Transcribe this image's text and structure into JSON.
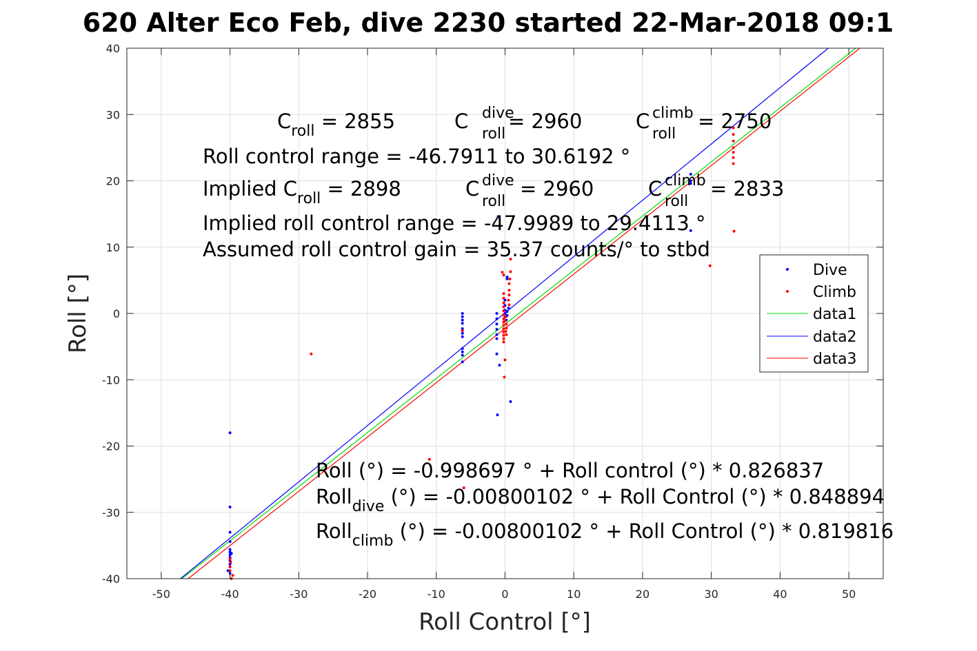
{
  "chart_data": {
    "type": "scatter",
    "title": "620 Alter Eco Feb, dive 2230 started 22-Mar-2018 09:1",
    "xlabel": "Roll Control [°]",
    "ylabel": "Roll [°]",
    "xlim": [
      -55,
      55
    ],
    "ylim": [
      -40,
      40
    ],
    "xticks": [
      -50,
      -40,
      -30,
      -20,
      -10,
      0,
      10,
      20,
      30,
      40,
      50
    ],
    "yticks": [
      -40,
      -30,
      -20,
      -10,
      0,
      10,
      20,
      30,
      40
    ],
    "grid": true,
    "legend_position": "right",
    "legend": [
      "Dive",
      "Climb",
      "data1",
      "data2",
      "data3"
    ],
    "series": [
      {
        "name": "Dive",
        "kind": "points",
        "color": "#0000ff",
        "points": [
          [
            -40,
            -18
          ],
          [
            -40,
            -29.2
          ],
          [
            -40,
            -33
          ],
          [
            -40,
            -34.4
          ],
          [
            -40,
            -35.6
          ],
          [
            -40,
            -36
          ],
          [
            -40,
            -36.4
          ],
          [
            -40,
            -36.8
          ],
          [
            -40,
            -37.3
          ],
          [
            -40,
            -37.8
          ],
          [
            -40,
            -38.2
          ],
          [
            -40.3,
            -38.8
          ],
          [
            -40,
            -39.2
          ],
          [
            -39.8,
            -36.2
          ],
          [
            -6.2,
            0
          ],
          [
            -6.2,
            -0.5
          ],
          [
            -6.2,
            -1
          ],
          [
            -6.2,
            -1.5
          ],
          [
            -6.2,
            -2.3
          ],
          [
            -6.2,
            -3
          ],
          [
            -6.2,
            -3.5
          ],
          [
            -6.2,
            -5.3
          ],
          [
            -6.2,
            -5.8
          ],
          [
            -6.2,
            -6.3
          ],
          [
            -6.2,
            -7.3
          ],
          [
            -1.2,
            0
          ],
          [
            -1.2,
            -0.8
          ],
          [
            -1.2,
            -1.6
          ],
          [
            -1.2,
            -2.4
          ],
          [
            -1.2,
            -3.2
          ],
          [
            -1.2,
            -3.8
          ],
          [
            -1.2,
            -6.1
          ],
          [
            -0.8,
            -7.8
          ],
          [
            -1.1,
            -15.3
          ],
          [
            -1,
            14.6
          ],
          [
            0,
            0
          ],
          [
            0,
            0.5
          ],
          [
            0,
            1.2
          ],
          [
            0,
            2
          ],
          [
            0.1,
            -0.5
          ],
          [
            0.2,
            -1
          ],
          [
            0.3,
            0.3
          ],
          [
            0.5,
            0.8
          ],
          [
            0.3,
            5.5
          ],
          [
            0.3,
            5.2
          ],
          [
            0.8,
            -13.3
          ],
          [
            0.3,
            -0.3
          ],
          [
            27,
            21
          ],
          [
            27,
            20
          ],
          [
            27,
            19.6
          ],
          [
            27,
            12.5
          ]
        ]
      },
      {
        "name": "Climb",
        "kind": "points",
        "color": "#ff0000",
        "points": [
          [
            -40,
            -37
          ],
          [
            -40,
            -38.2
          ],
          [
            -40,
            -38.8
          ],
          [
            -39.6,
            -39.5
          ],
          [
            -39.8,
            -40
          ],
          [
            -39.9,
            -37.5
          ],
          [
            -28.2,
            -6.1
          ],
          [
            -11,
            -22
          ],
          [
            -6,
            -26.3
          ],
          [
            -0.4,
            6.2
          ],
          [
            -0.2,
            5.8
          ],
          [
            0.8,
            6.3
          ],
          [
            0.7,
            5.2
          ],
          [
            0.6,
            4.5
          ],
          [
            0.6,
            3.5
          ],
          [
            0.6,
            2.8
          ],
          [
            0.5,
            2
          ],
          [
            0.6,
            1.3
          ],
          [
            0.8,
            8.2
          ],
          [
            -0.2,
            3
          ],
          [
            -0.2,
            2.3
          ],
          [
            -0.2,
            1.6
          ],
          [
            -0.2,
            1
          ],
          [
            -0.2,
            0.4
          ],
          [
            -0.2,
            -0.2
          ],
          [
            -0.2,
            -0.8
          ],
          [
            -0.2,
            -1.3
          ],
          [
            -0.2,
            -1.8
          ],
          [
            -0.2,
            -2.3
          ],
          [
            -0.2,
            -2.8
          ],
          [
            -0.2,
            -3.3
          ],
          [
            -0.2,
            -3.8
          ],
          [
            -0.2,
            -4.3
          ],
          [
            0,
            -0.5
          ],
          [
            0,
            -1.1
          ],
          [
            0.2,
            -1.6
          ],
          [
            0.2,
            -2.2
          ],
          [
            0.1,
            -2.7
          ],
          [
            0.2,
            -3.2
          ],
          [
            0,
            -7
          ],
          [
            -0.1,
            -9.6
          ],
          [
            -6.2,
            -2.6
          ],
          [
            33.2,
            28
          ],
          [
            33.2,
            27
          ],
          [
            33.2,
            26
          ],
          [
            33.2,
            25
          ],
          [
            33.2,
            24.3
          ],
          [
            33.2,
            23.5
          ],
          [
            33.2,
            22.6
          ],
          [
            33.3,
            12.4
          ],
          [
            29.8,
            7.2
          ]
        ]
      },
      {
        "name": "data1",
        "kind": "line",
        "color": "#00dd00",
        "x": [
          -47,
          51
        ],
        "y": [
          -40,
          40
        ]
      },
      {
        "name": "data2",
        "kind": "line",
        "color": "#0000ff",
        "x": [
          -47.2,
          47
        ],
        "y": [
          -40,
          40
        ]
      },
      {
        "name": "data3",
        "kind": "line",
        "color": "#ff0000",
        "x": [
          -46.1,
          51.6
        ],
        "y": [
          -40,
          40
        ]
      }
    ],
    "annotations": {
      "c_roll": {
        "c": "C",
        "sub": "roll",
        "value": " = 2855"
      },
      "c_roll_dive": {
        "c": "C",
        "sup": "dive",
        "sub": "roll",
        "value": " = 2960"
      },
      "c_roll_climb": {
        "c": "C",
        "sup": "climb",
        "sub": "roll",
        "value": " = 2750"
      },
      "roll_control_range": "Roll control range = -46.7911 to 30.6192 °",
      "implied_c_roll": {
        "prefix": "Implied C",
        "sub": "roll",
        "value": " = 2898"
      },
      "implied_c_roll_dive": {
        "c": "C",
        "sup": "dive",
        "sub": "roll",
        "value": " = 2960"
      },
      "implied_c_roll_climb": {
        "c": "C",
        "sup": "climb",
        "sub": "roll",
        "value": " = 2833"
      },
      "implied_range": "Implied roll control range = -47.9989 to 29.4113 °",
      "gain": "Assumed roll control gain = 35.37 counts/° to stbd",
      "fit_all": "Roll (°) = -0.998697 ° + Roll control (°) * 0.826837",
      "fit_dive": {
        "prefix": "Roll",
        "sub": "dive",
        "rest": " (°) = -0.00800102 ° + Roll Control (°) * 0.848894"
      },
      "fit_climb": {
        "prefix": "Roll",
        "sub": "climb",
        "rest": " (°) = -0.00800102 ° + Roll Control (°) * 0.819816"
      }
    }
  }
}
